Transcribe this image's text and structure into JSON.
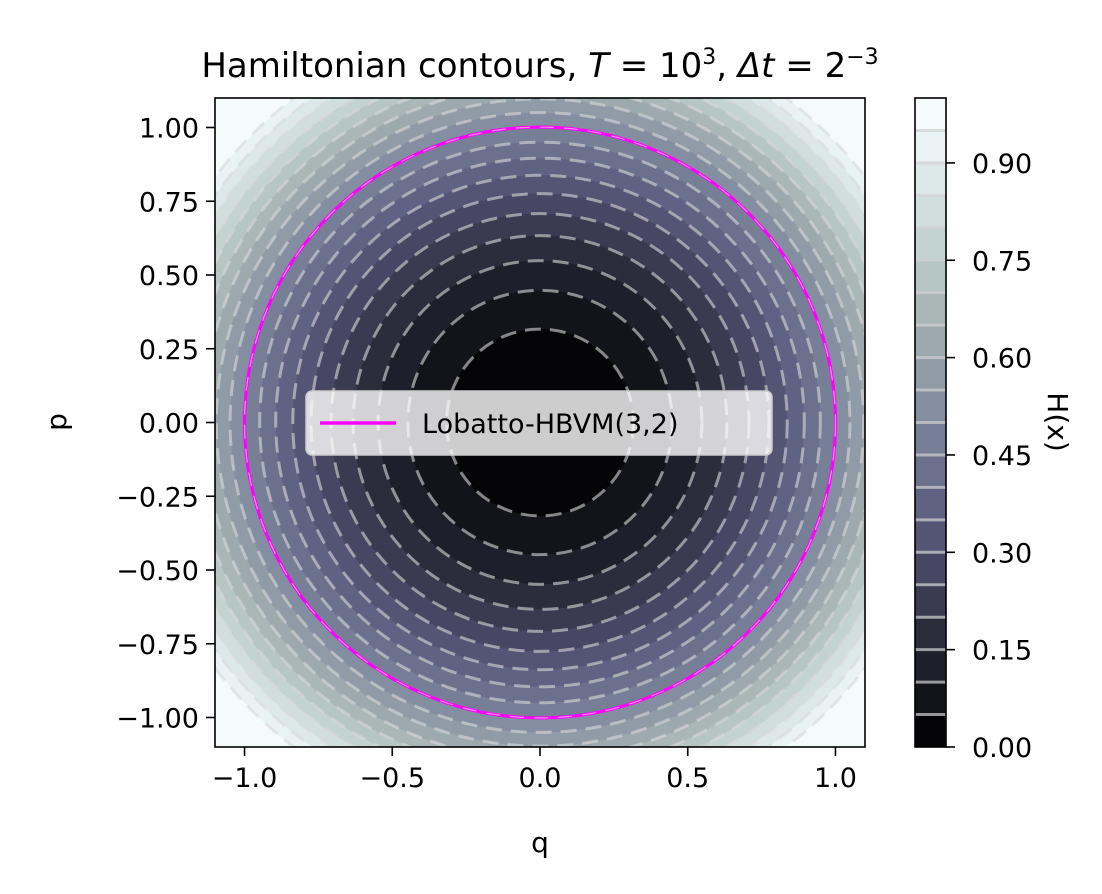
{
  "chart_data": {
    "type": "contour",
    "title": "Hamiltonian contours, T = 10³, Δt = 2⁻³",
    "title_parts": {
      "prefix": "Hamiltonian contours, ",
      "T_var": "T",
      "eq": " = ",
      "T_base": "10",
      "T_exp": "3",
      "comma": ", ",
      "dt_var": "Δt",
      "dt_base": "2",
      "dt_exp": "−3"
    },
    "xlabel": "q",
    "ylabel": "p",
    "xlim": [
      -1.1,
      1.1
    ],
    "ylim": [
      -1.1,
      1.1
    ],
    "xticks": [
      -1.0,
      -0.5,
      0.0,
      0.5,
      1.0
    ],
    "xtick_labels": [
      "−1.0",
      "−0.5",
      "0.0",
      "0.5",
      "1.0"
    ],
    "yticks": [
      1.0,
      0.75,
      0.5,
      0.25,
      0.0,
      -0.25,
      -0.5,
      -0.75,
      -1.0
    ],
    "ytick_labels": [
      "1.00",
      "0.75",
      "0.50",
      "0.25",
      "0.00",
      "−0.25",
      "−0.50",
      "−0.75",
      "−1.00"
    ],
    "hamiltonian": "H(x) = (q^2 + p^2) / 2",
    "fill_levels": [
      0.0,
      0.05,
      0.1,
      0.15,
      0.2,
      0.25,
      0.3,
      0.35,
      0.4,
      0.45,
      0.5,
      0.55,
      0.6,
      0.65,
      0.7,
      0.75,
      0.8,
      0.85,
      0.9,
      0.95,
      1.0
    ],
    "dashed_contour_levels": [
      0.05,
      0.1,
      0.15,
      0.2,
      0.25,
      0.3,
      0.35,
      0.4,
      0.45,
      0.5,
      0.55,
      0.6,
      0.65,
      0.7,
      0.75,
      0.8,
      0.85,
      0.9,
      0.95
    ],
    "colormap": [
      "#050507",
      "#13131a",
      "#1f1f2b",
      "#2c2c3d",
      "#3a3a50",
      "#474764",
      "#545475",
      "#5f6283",
      "#6b718d",
      "#777f97",
      "#838ea0",
      "#8f9ca8",
      "#9caaae",
      "#a9b8b7",
      "#b6c6c2",
      "#c3d3cf",
      "#d0dfdc",
      "#dde9e8",
      "#eaf3f3",
      "#f5fafa"
    ],
    "trajectory": {
      "name": "Lobatto-HBVM(3,2)",
      "color": "#ff00ff",
      "radius": 1.0,
      "H": 0.5
    },
    "legend": {
      "placement": "center",
      "entries": [
        "Lobatto-HBVM(3,2)"
      ]
    },
    "colorbar": {
      "label": "H(x)",
      "range": [
        0.0,
        1.0
      ],
      "ticks": [
        0.0,
        0.15,
        0.3,
        0.45,
        0.6,
        0.75,
        0.9
      ],
      "tick_labels": [
        "0.00",
        "0.15",
        "0.30",
        "0.45",
        "0.60",
        "0.75",
        "0.90"
      ]
    }
  }
}
